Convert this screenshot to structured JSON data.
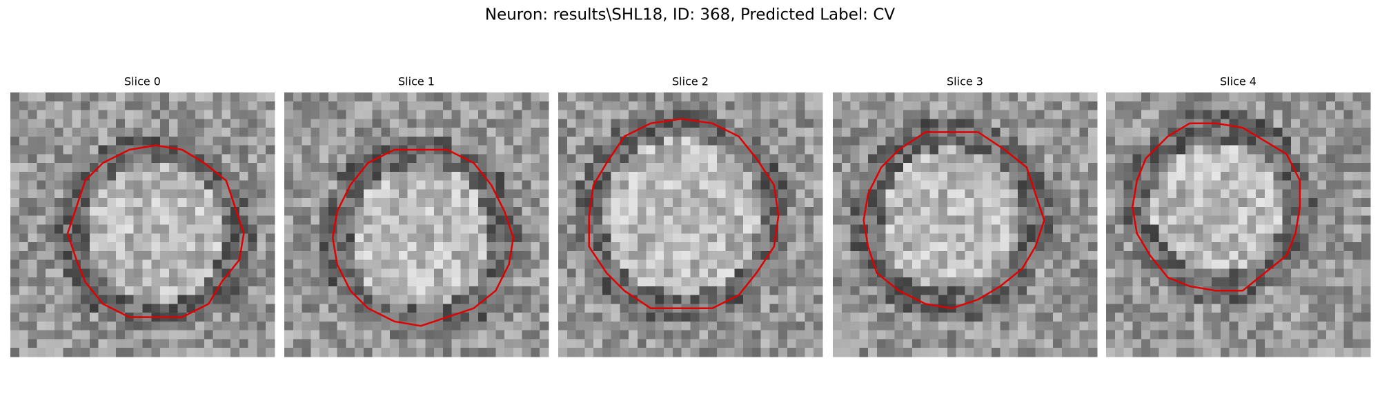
{
  "title": "Neuron: results\\SHL18, ID: 368, Predicted Label: CV",
  "panels": [
    {
      "title": "Slice 0"
    },
    {
      "title": "Slice 1"
    },
    {
      "title": "Slice 2"
    },
    {
      "title": "Slice 3"
    },
    {
      "title": "Slice 4"
    }
  ]
}
